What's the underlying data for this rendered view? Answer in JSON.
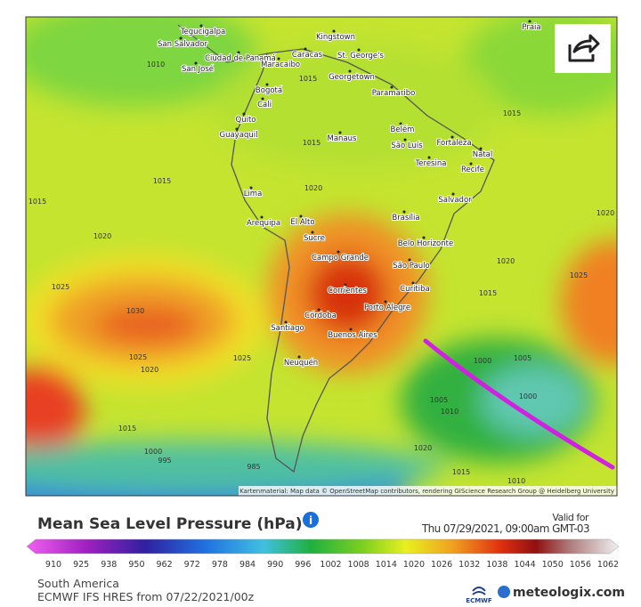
{
  "map": {
    "cities": [
      "Tegucigalpa",
      "San Salvador",
      "Ciudad de Panamá",
      "San José",
      "Maracaibo",
      "Caracas",
      "Kingstown",
      "St. George's",
      "Georgetown",
      "Paramaribo",
      "Bogotá",
      "Cali",
      "Quito",
      "Guayaquil",
      "Manaus",
      "Belém",
      "São Luís",
      "Fortaleza",
      "Teresina",
      "Natal",
      "Recife",
      "Salvador",
      "Lima",
      "Arequipa",
      "El Alto",
      "Sucre",
      "Brasília",
      "Belo Horizonte",
      "Campo Grande",
      "São Paulo",
      "Curitiba",
      "Corrientes",
      "Porto Alegre",
      "Córdoba",
      "Santiago",
      "Buenos Aires",
      "Neuquén",
      "Praia"
    ],
    "isobars": [
      1010,
      1015,
      1015,
      1015,
      1015,
      1015,
      1020,
      1020,
      1020,
      1020,
      1025,
      1030,
      1025,
      1025,
      1020,
      1015,
      1000,
      995,
      985,
      1015,
      1000,
      1005,
      1005,
      1010,
      1000,
      1020,
      1015,
      1010,
      1025
    ],
    "attribution": "Kartenmaterial: Map data © OpenStreetMap contributors, rendering GIScience Research Group @ Heidelberg University"
  },
  "legend": {
    "title": "Mean Sea Level Pressure (hPa)",
    "valid_label": "Valid for",
    "valid_time": "Thu 07/29/2021, 09:00am GMT-03",
    "ticks": [
      910,
      925,
      938,
      950,
      962,
      972,
      978,
      984,
      990,
      996,
      1002,
      1008,
      1014,
      1020,
      1026,
      1032,
      1038,
      1044,
      1050,
      1056,
      1062
    ]
  },
  "footer": {
    "region": "South America",
    "model": "ECMWF IFS HRES from 07/22/2021/00z",
    "ecmwf": "ECMWF",
    "brand": "meteologix.com"
  }
}
